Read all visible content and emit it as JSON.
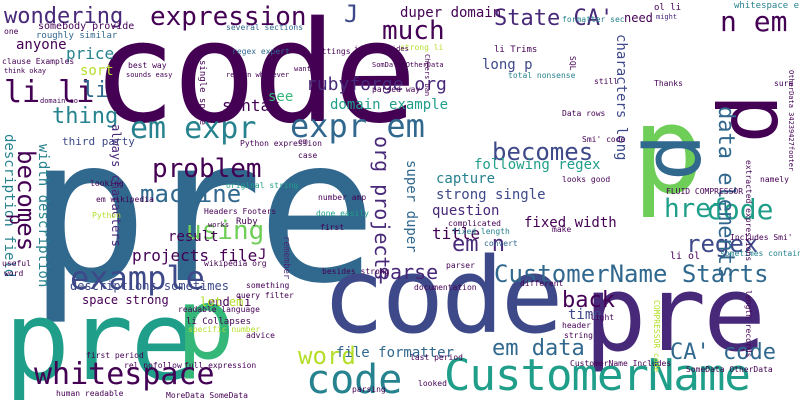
{
  "palette": {
    "dark_purple": "#440154",
    "indigo": "#482878",
    "slate_blue": "#3e4989",
    "steel_blue": "#31688e",
    "teal_blue": "#26828e",
    "teal": "#1f9e89",
    "green_teal": "#35b779",
    "green": "#6ece58",
    "lime": "#b5de2b",
    "yellow": "#fde725"
  },
  "words": {
    "pre_big": "pre",
    "code_top": "code",
    "pre_left": "pre",
    "p_left": "p",
    "p_right": "p",
    "code_mid": "code",
    "pre_right": "pre",
    "p_vert_mid": "p",
    "p_vert_right": "p",
    "customername_bottom": "CustomerName",
    "code_bottom": "code",
    "example": "example",
    "whitespace": "whitespace",
    "expression": "expression",
    "wondering": "wondering",
    "much": "much",
    "state_ca": "State CA'",
    "n_em": "n em",
    "em_expr": "em expr",
    "expr_em": "expr em",
    "li_li": "li li",
    "becomes_left": "becomes",
    "becomes_mid": "becomes",
    "thing": "thing",
    "using": "using",
    "problem": "problem",
    "machine": "machine",
    "customername_starts": "CustomerName Starts",
    "em_n": "em n",
    "regex": "regex",
    "href": "href",
    "code_right": "code",
    "data_elements": "data elements",
    "word": "word",
    "em_data": "em data",
    "ca_code": "CA' code",
    "back": "back",
    "parse": "parse",
    "projects_file": "projects file",
    "rubyforge_org": "rubyforge org",
    "org_projects": "org projects",
    "syntax": "syntax",
    "j_top": "J",
    "anyone": "anyone",
    "price": "price",
    "sort": "sort",
    "li_left": "li",
    "description_field": "description field",
    "width_description": "width description",
    "p_small": "p",
    "duper_domain": "duper domain",
    "long_p": "long p",
    "title": "title",
    "characters_long": "characters long",
    "domain_example": "domain example",
    "following_regex": "following regex",
    "capture": "capture",
    "strong_single": "strong single",
    "question": "question",
    "fixed_width": "fixed width",
    "super_duper": "super duper",
    "time": "time",
    "result": "result",
    "file_formatter": "file formatter",
    "end_li": "end li",
    "lot_em": "lot em",
    "space_strong": "space strong",
    "descriptions_sometimes": "descriptions sometimes",
    "org_wiki": "org wiki",
    "see": "see",
    "always_characters": "always characters",
    "third_party": "third party",
    "need": "need",
    "somebody_provide": "somebody provide",
    "roughly_similar": "roughly similar",
    "several_sections": "several sections",
    "formatter_sec": "formatter sec",
    "ol_li": "ol li",
    "might": "might",
    "whitespace_e": "whitespace e",
    "regex_expert": "regex expert",
    "strong_li": "strong li",
    "li_trims": "li Trims",
    "total_nonsense": "total nonsense",
    "smi_code": "Smi' code",
    "fluid_compressor": "FLUID COMPRESSOR",
    "includes_smi": "Includes Smi'",
    "sometimes_contain": "sometimes contain",
    "looks_good": "looks good",
    "complicated": "complicated",
    "fixed_length": "fixed length",
    "convert": "convert",
    "make": "make",
    "li_ol": "li ol",
    "parser": "parser",
    "light": "light",
    "header": "header",
    "string": "string",
    "different": "different",
    "first_period": "first period",
    "full_expression": "full expression",
    "human_readable": "human readable",
    "parsing": "parsing",
    "looked": "looked",
    "customername_includes": "CustomerName Includes",
    "somedata_otherdata": "SomeData OtherData",
    "moredata_somedata": "MoreData SomeData",
    "compressor_code": "COMPRESSOR code",
    "rel_nofollow": "rel nofollow",
    "advice": "advice",
    "readable_language": "readable language",
    "li_collapses": "li Collapses",
    "query_filter": "query filter",
    "specific_number": "specific number",
    "headers_footers": "Headers Footers",
    "wikipedia_org": "wikipedia org",
    "em_wikipedia": "em wikipedia",
    "looking": "looking",
    "python": "Python",
    "ruby": "Ruby",
    "number_amp": "number amp",
    "done_easily": "done easily",
    "original_string": "original string",
    "besides_strong": "besides strong",
    "last_period": "last period",
    "documentation": "documentation",
    "python_expression": "Python expression",
    "case": "case",
    "single_space": "single space",
    "clause_examples": "clause Examples",
    "useful": "useful",
    "remember": "remember",
    "thanks": "Thanks",
    "namely": "namely",
    "extracted_expressions": "extracted expressions",
    "length_records": "length records",
    "data_rows": "Data rows",
    "sure": "sure",
    "otherdata_footer": "OtherData 34239427footer",
    "settings": "settings",
    "best_way": "best way",
    "think_okay": "think okay",
    "sounds_easy": "sounds easy",
    "return_whatever": "return whatever",
    "parsed_way": "parsed way",
    "cheers_dan": "Cheers Dan",
    "ideas_besides": "ideas besides",
    "somdata_otherdata": "SomData OtherData",
    "sql": "SQL",
    "still": "still",
    "domain_co": "domain co",
    "one": "one",
    "want": "want",
    "word_small": "word",
    "first": "first",
    "works": "works",
    "something": "something",
    "j_small": "J",
    "em_small": "em"
  }
}
